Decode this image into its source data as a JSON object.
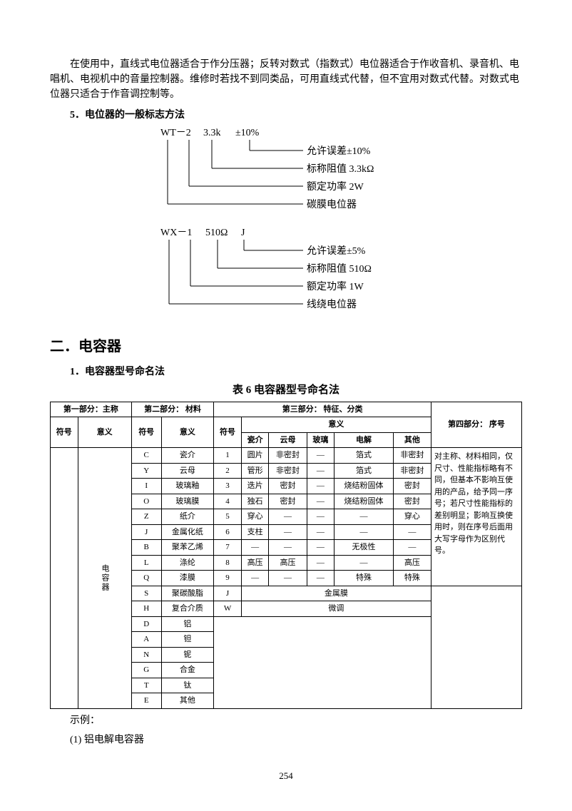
{
  "intro": "在使用中，直线式电位器适合于作分压器；反转对数式（指数式）电位器适合于作收音机、录音机、电唱机、电视机中的音量控制器。维修时若找不到同类品，可用直线式代替，但不宜用对数式代替。对数式电位器只适合于作音调控制等。",
  "section5_title": "5．电位器的一般标志方法",
  "diag1": {
    "code1": "WT－2",
    "code2": "3.3k",
    "code3": "±10%",
    "l1": "允许误差±10%",
    "l2": "标称阻值 3.3kΩ",
    "l3": "额定功率 2W",
    "l4": "碳膜电位器"
  },
  "diag2": {
    "code1": "WX－1",
    "code2": "510Ω",
    "code3": "J",
    "l1": "允许误差±5%",
    "l2": "标称阻值 510Ω",
    "l3": "额定功率 1W",
    "l4": "线绕电位器"
  },
  "h2": "二．电容器",
  "sub1": "1．电容器型号命名法",
  "table_caption": "表 6    电容器型号命名法",
  "table": {
    "h_part1": "第一部分：主称",
    "h_part2": "第二部分：\n材料",
    "h_part3": "第三部分：\n特征、分类",
    "h_part4": "第四部分：\n序号",
    "h_sym": "符号",
    "h_mean": "意义",
    "col_sym": "符号",
    "col_mean_cols": [
      "瓷介",
      "云母",
      "玻璃",
      "电解",
      "其他"
    ],
    "main_sym": "",
    "main_mean": "电容器",
    "rows": [
      [
        "C",
        "瓷介",
        "1",
        "圆片",
        "非密封",
        "—",
        "箔式",
        "非密封"
      ],
      [
        "Y",
        "云母",
        "2",
        "管形",
        "非密封",
        "—",
        "箔式",
        "非密封"
      ],
      [
        "I",
        "玻璃釉",
        "3",
        "迭片",
        "密封",
        "—",
        "烧结粉固体",
        "密封"
      ],
      [
        "O",
        "玻璃膜",
        "4",
        "独石",
        "密封",
        "—",
        "烧结粉固体",
        "密封"
      ],
      [
        "Z",
        "纸介",
        "5",
        "穿心",
        "—",
        "—",
        "—",
        "穿心"
      ],
      [
        "J",
        "金属化纸",
        "6",
        "支柱",
        "—",
        "—",
        "—",
        "—"
      ],
      [
        "B",
        "聚苯乙烯",
        "7",
        "—",
        "—",
        "—",
        "无极性",
        "—"
      ],
      [
        "L",
        "涤纶",
        "8",
        "高压",
        "高压",
        "—",
        "—",
        "高压"
      ],
      [
        "Q",
        "漆膜",
        "9",
        "—",
        "—",
        "—",
        "特殊",
        "特殊"
      ]
    ],
    "span_rows": [
      [
        "S",
        "聚碳酸脂",
        "J",
        "金属膜"
      ],
      [
        "H",
        "复合介质",
        "W",
        "微调"
      ]
    ],
    "tail_rows": [
      [
        "D",
        "铝"
      ],
      [
        "A",
        "钽"
      ],
      [
        "N",
        "铌"
      ],
      [
        "G",
        "合金"
      ],
      [
        "T",
        "钛"
      ],
      [
        "E",
        "其他"
      ]
    ],
    "note": "对主称、材料相同，仅尺寸、性能指标略有不同，但基本不影响互使用的产品，给予同一序号；若尺寸性能指标的差别明显；影响互换使用时，则在序号后面用大写字母作为区别代号。"
  },
  "example_label": "示例：",
  "example_1": "(1) 铝电解电容器",
  "page_number": "254"
}
